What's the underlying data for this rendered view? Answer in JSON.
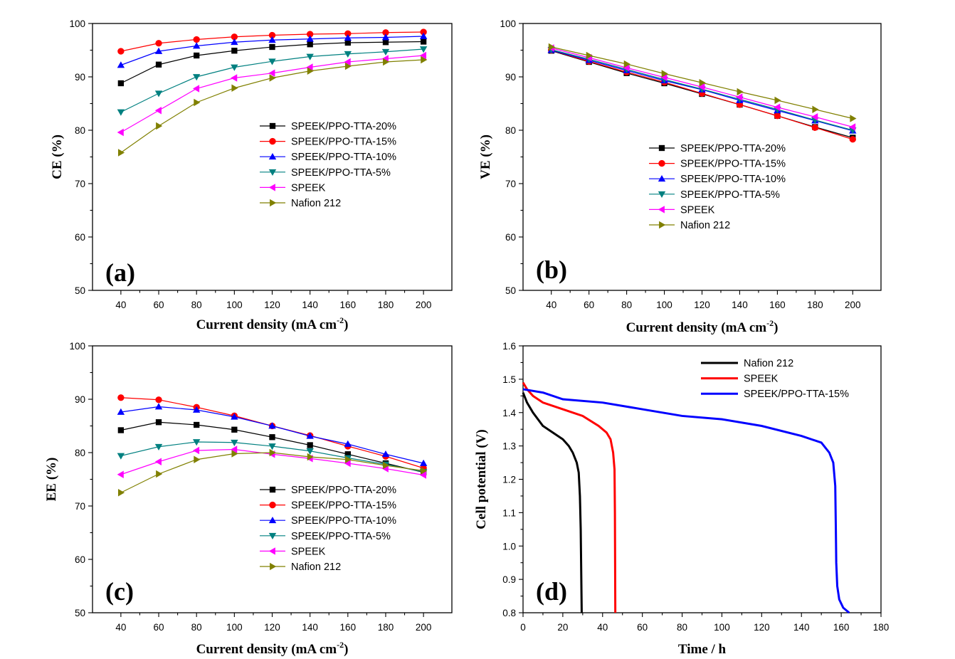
{
  "chart_data": [
    {
      "type": "line",
      "panel_label": "(a)",
      "xlabel": "Current density (mA cm",
      "xlabel_sup": "-2",
      "xlabel_end": ")",
      "ylabel": "CE (%)",
      "x": [
        40,
        60,
        80,
        100,
        120,
        140,
        160,
        180,
        200
      ],
      "xlim": [
        25,
        215
      ],
      "xticks": [
        40,
        60,
        80,
        100,
        120,
        140,
        160,
        180,
        200
      ],
      "ylim": [
        50,
        100
      ],
      "yticks": [
        50,
        60,
        70,
        80,
        90,
        100
      ],
      "legend": "center-right",
      "series": [
        {
          "name": "SPEEK/PPO-TTA-20%",
          "color": "#000000",
          "marker": "square",
          "values": [
            88.8,
            92.3,
            94.0,
            94.9,
            95.6,
            96.1,
            96.4,
            96.5,
            96.6
          ]
        },
        {
          "name": "SPEEK/PPO-TTA-15%",
          "color": "#ff0000",
          "marker": "circle",
          "values": [
            94.8,
            96.3,
            97.0,
            97.5,
            97.8,
            98.0,
            98.1,
            98.3,
            98.4
          ]
        },
        {
          "name": "SPEEK/PPO-TTA-10%",
          "color": "#0000ff",
          "marker": "triangle-up",
          "values": [
            92.2,
            94.8,
            95.8,
            96.5,
            96.9,
            97.1,
            97.3,
            97.4,
            97.6
          ]
        },
        {
          "name": "SPEEK/PPO-TTA-5%",
          "color": "#008080",
          "marker": "triangle-down",
          "values": [
            83.4,
            86.9,
            90.0,
            91.8,
            92.9,
            93.8,
            94.3,
            94.7,
            95.2
          ]
        },
        {
          "name": "SPEEK",
          "color": "#ff00ff",
          "marker": "triangle-left",
          "values": [
            79.6,
            83.7,
            87.8,
            89.8,
            90.7,
            91.8,
            92.8,
            93.4,
            94.0
          ]
        },
        {
          "name": "Nafion 212",
          "color": "#808000",
          "marker": "triangle-right",
          "values": [
            75.8,
            80.8,
            85.2,
            87.9,
            89.8,
            91.1,
            92.0,
            92.8,
            93.2
          ]
        }
      ]
    },
    {
      "type": "line",
      "panel_label": "(b)",
      "xlabel": "Current density (mA cm",
      "xlabel_sup": "-2",
      "xlabel_end": ")",
      "ylabel": "VE (%)",
      "x": [
        40,
        60,
        80,
        100,
        120,
        140,
        160,
        180,
        200
      ],
      "xlim": [
        25,
        215
      ],
      "xticks": [
        40,
        60,
        80,
        100,
        120,
        140,
        160,
        180,
        200
      ],
      "ylim": [
        50,
        100
      ],
      "yticks": [
        50,
        60,
        70,
        80,
        90,
        100
      ],
      "legend": "center-right",
      "series": [
        {
          "name": "SPEEK/PPO-TTA-20%",
          "color": "#000000",
          "marker": "square",
          "values": [
            94.9,
            92.8,
            90.7,
            88.8,
            86.8,
            84.8,
            82.7,
            80.6,
            78.6
          ]
        },
        {
          "name": "SPEEK/PPO-TTA-15%",
          "color": "#ff0000",
          "marker": "circle",
          "values": [
            95.0,
            92.9,
            90.9,
            89.0,
            86.9,
            84.8,
            82.7,
            80.5,
            78.3
          ]
        },
        {
          "name": "SPEEK/PPO-TTA-10%",
          "color": "#0000ff",
          "marker": "triangle-up",
          "values": [
            95.0,
            93.1,
            91.2,
            89.3,
            87.6,
            85.6,
            83.7,
            81.8,
            79.9
          ]
        },
        {
          "name": "SPEEK/PPO-TTA-5%",
          "color": "#008080",
          "marker": "triangle-down",
          "values": [
            95.1,
            93.3,
            91.4,
            89.5,
            87.7,
            85.8,
            83.9,
            81.9,
            80.0
          ]
        },
        {
          "name": "SPEEK",
          "color": "#ff00ff",
          "marker": "triangle-left",
          "values": [
            95.4,
            93.6,
            91.7,
            89.9,
            88.1,
            86.2,
            84.3,
            82.5,
            80.6
          ]
        },
        {
          "name": "Nafion 212",
          "color": "#808000",
          "marker": "triangle-right",
          "values": [
            95.6,
            94.0,
            92.4,
            90.6,
            88.9,
            87.2,
            85.6,
            83.9,
            82.2
          ]
        }
      ]
    },
    {
      "type": "line",
      "panel_label": "(c)",
      "xlabel": "Current density (mA cm",
      "xlabel_sup": "-2",
      "xlabel_end": ")",
      "ylabel": "EE (%)",
      "x": [
        40,
        60,
        80,
        100,
        120,
        140,
        160,
        180,
        200
      ],
      "xlim": [
        25,
        215
      ],
      "xticks": [
        40,
        60,
        80,
        100,
        120,
        140,
        160,
        180,
        200
      ],
      "ylim": [
        50,
        100
      ],
      "yticks": [
        50,
        60,
        70,
        80,
        90,
        100
      ],
      "legend": "center-right",
      "series": [
        {
          "name": "SPEEK/PPO-TTA-20%",
          "color": "#000000",
          "marker": "square",
          "values": [
            84.2,
            85.7,
            85.2,
            84.3,
            82.9,
            81.4,
            79.7,
            78.0,
            76.3
          ]
        },
        {
          "name": "SPEEK/PPO-TTA-15%",
          "color": "#ff0000",
          "marker": "circle",
          "values": [
            90.3,
            89.9,
            88.5,
            86.9,
            85.0,
            83.2,
            81.2,
            79.3,
            77.1
          ]
        },
        {
          "name": "SPEEK/PPO-TTA-10%",
          "color": "#0000ff",
          "marker": "triangle-up",
          "values": [
            87.6,
            88.6,
            88.0,
            86.7,
            85.0,
            83.1,
            81.6,
            79.7,
            78.0
          ]
        },
        {
          "name": "SPEEK/PPO-TTA-5%",
          "color": "#008080",
          "marker": "triangle-down",
          "values": [
            79.4,
            81.1,
            82.0,
            81.9,
            81.2,
            80.3,
            79.0,
            77.8,
            76.4
          ]
        },
        {
          "name": "SPEEK",
          "color": "#ff00ff",
          "marker": "triangle-left",
          "values": [
            75.9,
            78.3,
            80.4,
            80.6,
            79.7,
            78.9,
            78.0,
            77.0,
            75.8
          ]
        },
        {
          "name": "Nafion 212",
          "color": "#808000",
          "marker": "triangle-right",
          "values": [
            72.5,
            76.0,
            78.7,
            79.8,
            80.0,
            79.2,
            78.7,
            77.6,
            76.6
          ]
        }
      ]
    },
    {
      "type": "line",
      "panel_label": "(d)",
      "xlabel": "Time / h",
      "ylabel": "Cell potential (V)",
      "xlim": [
        0,
        180
      ],
      "xticks": [
        0,
        20,
        40,
        60,
        80,
        100,
        120,
        140,
        160,
        180
      ],
      "ylim": [
        0.8,
        1.6
      ],
      "yticks": [
        0.8,
        0.9,
        1.0,
        1.1,
        1.2,
        1.3,
        1.4,
        1.5,
        1.6
      ],
      "legend": "top-right",
      "series": [
        {
          "name": "Nafion 212",
          "color": "#000000",
          "points": [
            [
              0,
              1.46
            ],
            [
              2,
              1.43
            ],
            [
              5,
              1.4
            ],
            [
              10,
              1.36
            ],
            [
              15,
              1.34
            ],
            [
              20,
              1.32
            ],
            [
              23,
              1.3
            ],
            [
              25,
              1.28
            ],
            [
              27,
              1.25
            ],
            [
              28,
              1.22
            ],
            [
              28.6,
              1.15
            ],
            [
              29,
              1.05
            ],
            [
              29.2,
              0.95
            ],
            [
              29.4,
              0.85
            ],
            [
              29.5,
              0.8
            ]
          ]
        },
        {
          "name": "SPEEK",
          "color": "#ff0000",
          "points": [
            [
              0,
              1.49
            ],
            [
              2,
              1.47
            ],
            [
              5,
              1.45
            ],
            [
              10,
              1.43
            ],
            [
              20,
              1.41
            ],
            [
              30,
              1.39
            ],
            [
              38,
              1.36
            ],
            [
              42,
              1.34
            ],
            [
              44,
              1.32
            ],
            [
              45.3,
              1.28
            ],
            [
              46,
              1.23
            ],
            [
              46.2,
              1.1
            ],
            [
              46.3,
              0.95
            ],
            [
              46.4,
              0.8
            ]
          ]
        },
        {
          "name": "SPEEK/PPO-TTA-15%",
          "color": "#0000ff",
          "points": [
            [
              0,
              1.47
            ],
            [
              10,
              1.46
            ],
            [
              20,
              1.44
            ],
            [
              40,
              1.43
            ],
            [
              60,
              1.41
            ],
            [
              80,
              1.39
            ],
            [
              100,
              1.38
            ],
            [
              120,
              1.36
            ],
            [
              140,
              1.33
            ],
            [
              150,
              1.31
            ],
            [
              154,
              1.28
            ],
            [
              156,
              1.25
            ],
            [
              157,
              1.18
            ],
            [
              157.3,
              1.05
            ],
            [
              157.5,
              0.95
            ],
            [
              158,
              0.88
            ],
            [
              159,
              0.84
            ],
            [
              161,
              0.815
            ],
            [
              164,
              0.8
            ]
          ]
        }
      ]
    }
  ]
}
